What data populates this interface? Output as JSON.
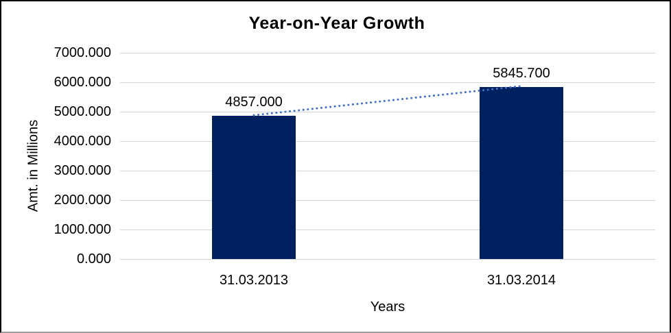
{
  "frame": {
    "background_color": "#ffffff",
    "border_color": "#000000"
  },
  "chart_data": {
    "type": "bar",
    "title": "Year-on-Year Growth",
    "categories": [
      "31.03.2013",
      "31.03.2014"
    ],
    "values": [
      4857.0,
      5845.7
    ],
    "value_labels": [
      "4857.000",
      "5845.700"
    ],
    "xlabel": "Years",
    "ylabel": "Amt. in Millions",
    "ylim": [
      0,
      7000
    ],
    "ytick_step": 1000,
    "ytick_labels": [
      "0.000",
      "1000.000",
      "2000.000",
      "3000.000",
      "4000.000",
      "5000.000",
      "6000.000",
      "7000.000"
    ],
    "grid": true,
    "legend": "none",
    "bar_color": "#002060",
    "gridline_color": "#d4d4d4",
    "trendline": {
      "present": true,
      "style": "dotted",
      "color": "#4472c4"
    }
  }
}
